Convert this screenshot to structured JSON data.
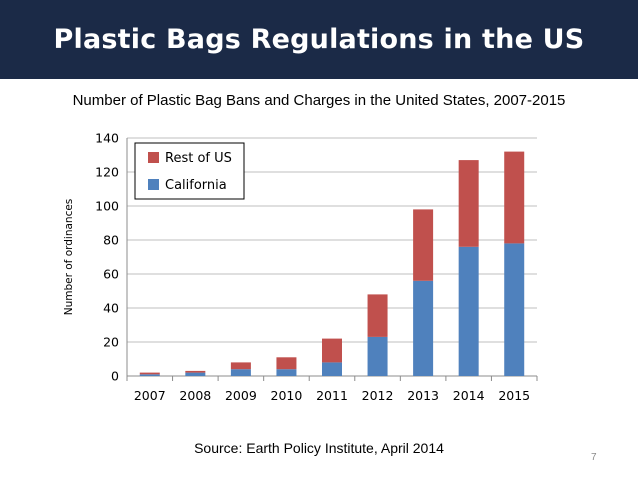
{
  "slide": {
    "title": "Plastic Bags Regulations in the US",
    "source": "Source: Earth Policy Institute, April 2014",
    "page_number": "7"
  },
  "chart_data": {
    "type": "bar",
    "stacked": true,
    "title": "Number of Plastic Bag Bans and Charges in the United States, 2007-2015",
    "xlabel": "",
    "ylabel": "Number of ordinances",
    "ylim": [
      0,
      140
    ],
    "yticks": [
      0,
      20,
      40,
      60,
      80,
      100,
      120,
      140
    ],
    "grid": true,
    "legend_position": "top-left",
    "categories": [
      "2007",
      "2008",
      "2009",
      "2010",
      "2011",
      "2012",
      "2013",
      "2014",
      "2015"
    ],
    "series": [
      {
        "name": "California",
        "color": "#4f81bd",
        "values": [
          1,
          2,
          4,
          4,
          8,
          23,
          56,
          76,
          78
        ]
      },
      {
        "name": "Rest of US",
        "color": "#c0504d",
        "values": [
          1,
          1,
          4,
          7,
          14,
          25,
          42,
          51,
          54
        ]
      }
    ],
    "legend_order": [
      "Rest of US",
      "California"
    ]
  }
}
